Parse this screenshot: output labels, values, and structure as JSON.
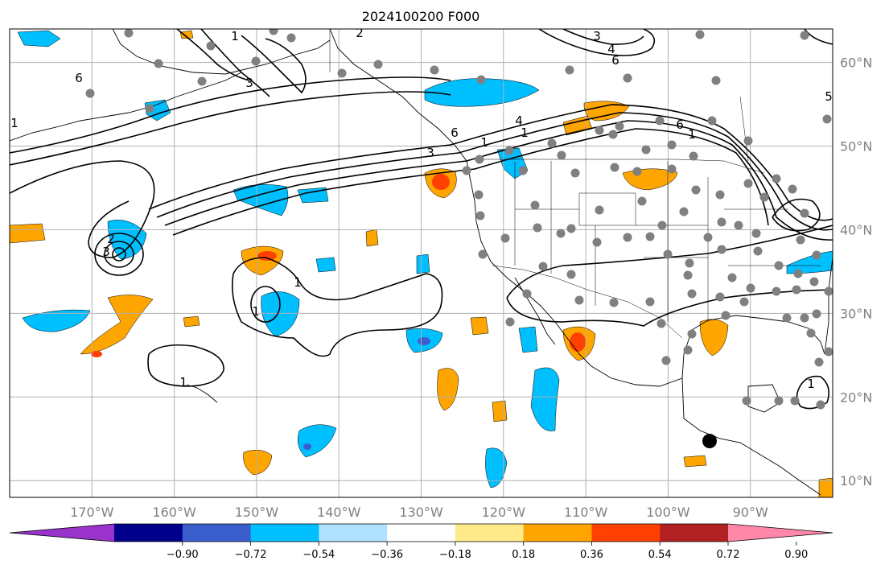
{
  "title": "2024100200 F000",
  "map": {
    "lon_range": [
      -180,
      -80
    ],
    "lat_range": [
      8,
      64
    ],
    "lon_ticks": [
      -170,
      -160,
      -150,
      -140,
      -130,
      -120,
      -110,
      -100,
      -90
    ],
    "lon_tick_labels": [
      "170°W",
      "160°W",
      "150°W",
      "140°W",
      "130°W",
      "120°W",
      "110°W",
      "100°W",
      "90°W"
    ],
    "lat_ticks": [
      10,
      20,
      30,
      40,
      50,
      60
    ],
    "lat_tick_labels": [
      "10°N",
      "20°N",
      "30°N",
      "40°N",
      "50°N",
      "60°N"
    ],
    "grid": true
  },
  "colorbar": {
    "colors": [
      "#9933cc",
      "#00008b",
      "#3a5fcd",
      "#00bfff",
      "#b0e2ff",
      "#ffffff",
      "#ffeb8a",
      "#ffa500",
      "#ff4000",
      "#b22222",
      "#ff88aa"
    ],
    "tick_labels": [
      "−0.90",
      "−0.72",
      "−0.54",
      "−0.36",
      "−0.18",
      "0.18",
      "0.36",
      "0.54",
      "0.72",
      "0.90"
    ]
  },
  "contour_labels": [
    "6",
    "6",
    "4",
    "3",
    "2",
    "3",
    "6",
    "4",
    "3",
    "2",
    "1",
    "1",
    "1",
    "1",
    "1",
    "1",
    "5",
    "3",
    "6",
    "1",
    "1",
    "1"
  ],
  "marker": {
    "label": ""
  },
  "colors": {
    "contour": "#000000",
    "station": "#808080",
    "grid": "#b0b0b0"
  }
}
